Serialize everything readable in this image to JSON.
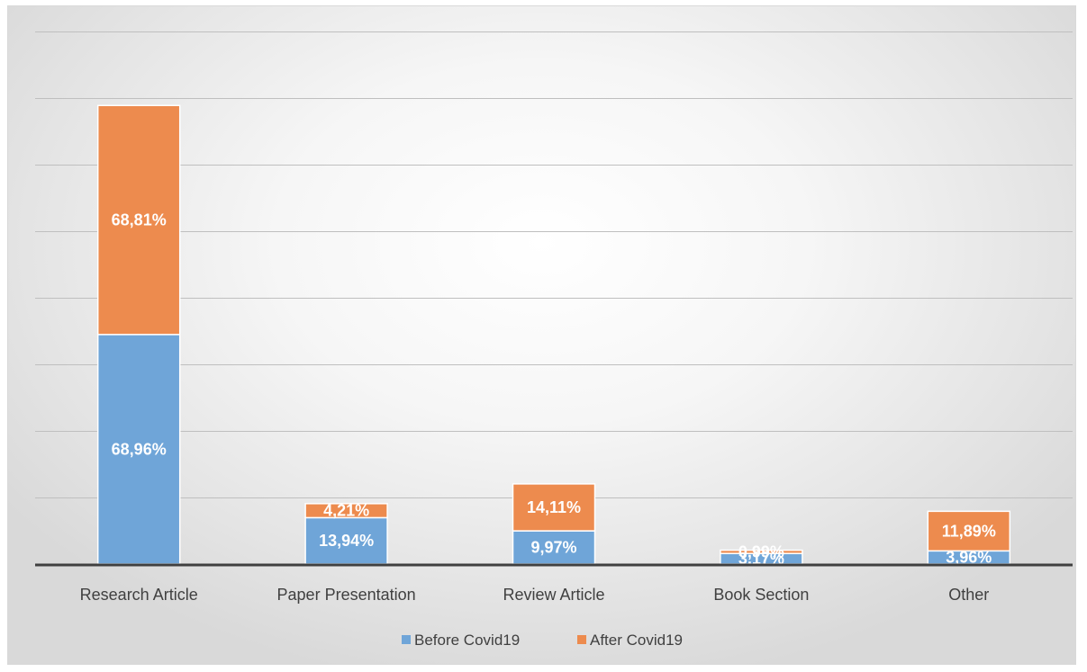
{
  "chart_data": {
    "type": "bar",
    "stacked": true,
    "title": "",
    "xlabel": "",
    "ylabel": "",
    "categories": [
      "Research Article",
      "Paper Presentation",
      "Review Article",
      "Book Section",
      "Other"
    ],
    "series": [
      {
        "name": "Before Covid19",
        "color": "#6fa5d8",
        "values": [
          68.96,
          13.94,
          9.97,
          3.17,
          3.96
        ],
        "labels": [
          "68,96%",
          "13,94%",
          "9,97%",
          "3,17%",
          "3,96%"
        ]
      },
      {
        "name": "After Covid19",
        "color": "#ed8b4e",
        "values": [
          68.81,
          4.21,
          14.11,
          0.99,
          11.89
        ],
        "labels": [
          "68,81%",
          "4,21%",
          "14,11%",
          "0,99%",
          "11,89%"
        ]
      }
    ],
    "ylim": [
      0,
      160
    ],
    "gridline_step": 20,
    "grid": true,
    "y_tick_labels_shown": false,
    "legend_position": "bottom"
  }
}
